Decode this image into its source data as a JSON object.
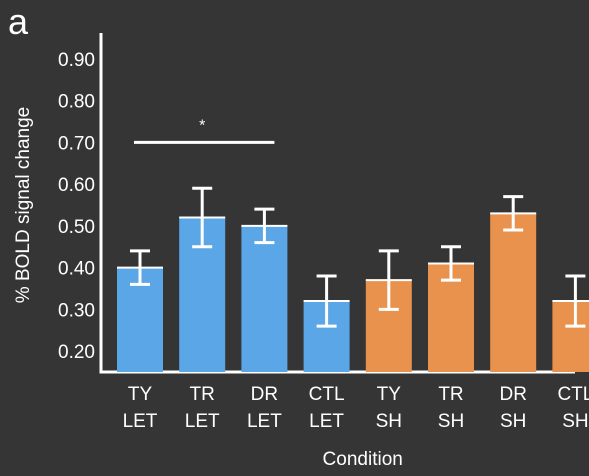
{
  "panel_label": "a",
  "colors": {
    "background": "#353535",
    "axis": "#ffffff",
    "text": "#ffffff",
    "LET": "#5aa6e6",
    "SH": "#e8924d",
    "error_bar": "#ffffff"
  },
  "chart_data": {
    "type": "bar",
    "ylabel": "% BOLD signal change",
    "xlabel": "Condition",
    "ylim": [
      0.15,
      0.95
    ],
    "yticks": [
      "0.20",
      "0.30",
      "0.40",
      "0.50",
      "0.60",
      "0.70",
      "0.80",
      "0.90"
    ],
    "categories": [
      [
        "TY",
        "LET"
      ],
      [
        "TR",
        "LET"
      ],
      [
        "DR",
        "LET"
      ],
      [
        "CTL",
        "LET"
      ],
      [
        "TY",
        "SH"
      ],
      [
        "TR",
        "SH"
      ],
      [
        "DR",
        "SH"
      ],
      [
        "CTL",
        "SH"
      ]
    ],
    "groups": [
      "LET",
      "LET",
      "LET",
      "LET",
      "SH",
      "SH",
      "SH",
      "SH"
    ],
    "values": [
      0.4,
      0.52,
      0.5,
      0.32,
      0.37,
      0.41,
      0.53,
      0.32
    ],
    "errors": [
      0.04,
      0.07,
      0.04,
      0.06,
      0.07,
      0.04,
      0.04,
      0.06
    ],
    "significance": {
      "from_category": 0,
      "to_category": 2,
      "level": 0.7,
      "label": "*"
    },
    "grid": false,
    "legend": "none"
  }
}
